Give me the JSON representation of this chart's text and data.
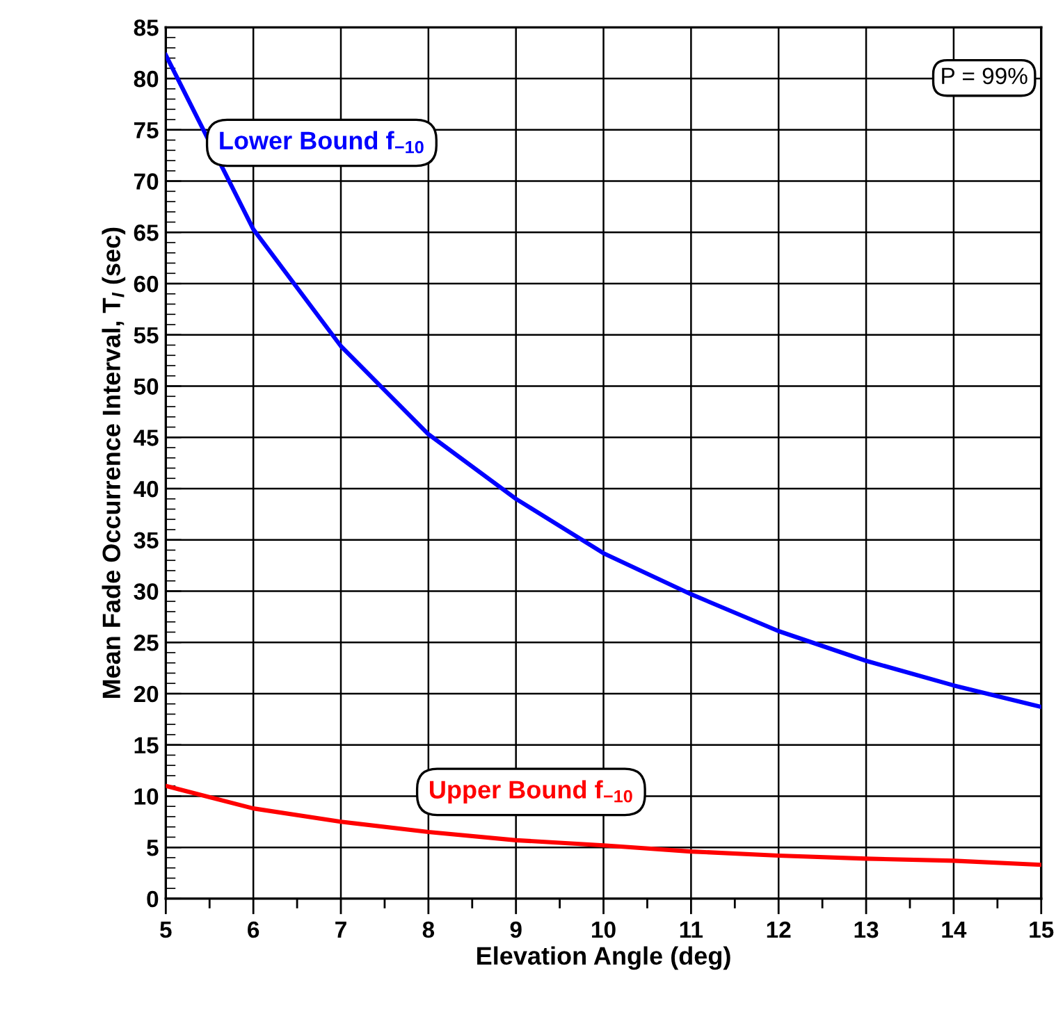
{
  "chart_data": {
    "type": "line",
    "xlabel": "Elevation Angle (deg)",
    "ylabel": "Mean Fade Occurrence Interval, T$_{I}$ (sec)",
    "x": [
      5,
      6,
      7,
      8,
      9,
      10,
      11,
      12,
      13,
      14,
      15
    ],
    "series": [
      {
        "name": "Lower Bound f$_{−10}$",
        "color": "#0000ff",
        "values": [
          82.3,
          65.3,
          53.9,
          45.3,
          39.0,
          33.7,
          29.7,
          26.1,
          23.2,
          20.8,
          18.7
        ]
      },
      {
        "name": "Upper Bound f$_{−10}$",
        "color": "#ff0000",
        "values": [
          11.0,
          8.8,
          7.5,
          6.5,
          5.7,
          5.2,
          4.6,
          4.2,
          3.9,
          3.7,
          3.3
        ]
      }
    ],
    "xlim": [
      5,
      15
    ],
    "xticks": [
      5,
      6,
      7,
      8,
      9,
      10,
      11,
      12,
      13,
      14,
      15
    ],
    "ylim": [
      0,
      85
    ],
    "yticks": [
      0,
      5,
      10,
      15,
      20,
      25,
      30,
      35,
      40,
      45,
      50,
      55,
      60,
      65,
      70,
      75,
      80,
      85
    ],
    "grid": true,
    "marker": "none",
    "line_style": "solid",
    "annotations": [
      "P = 99%"
    ]
  }
}
